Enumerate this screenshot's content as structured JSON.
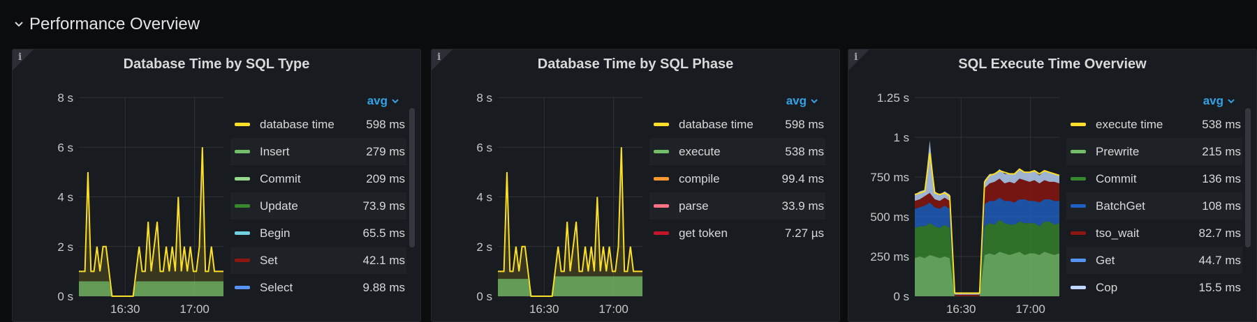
{
  "row": {
    "title": "Performance Overview"
  },
  "icons": {
    "collapse": "chevron-down-icon",
    "info": "info-icon"
  },
  "panels": [
    {
      "title": "Database Time by SQL Type",
      "info_label": "i",
      "legend_mode": "avg",
      "legend": [
        {
          "name": "database time",
          "value": "598 ms",
          "color": "#fade2a"
        },
        {
          "name": "Insert",
          "value": "279 ms",
          "color": "#73bf69"
        },
        {
          "name": "Commit",
          "value": "209 ms",
          "color": "#96d98d"
        },
        {
          "name": "Update",
          "value": "73.9 ms",
          "color": "#37872d"
        },
        {
          "name": "Begin",
          "value": "65.5 ms",
          "color": "#73d0e0"
        },
        {
          "name": "Set",
          "value": "42.1 ms",
          "color": "#8f1510"
        },
        {
          "name": "Select",
          "value": "9.88 ms",
          "color": "#5794f2"
        }
      ]
    },
    {
      "title": "Database Time by SQL Phase",
      "info_label": "i",
      "legend_mode": "avg",
      "legend": [
        {
          "name": "database time",
          "value": "598 ms",
          "color": "#fade2a"
        },
        {
          "name": "execute",
          "value": "538 ms",
          "color": "#73bf69"
        },
        {
          "name": "compile",
          "value": "99.4 ms",
          "color": "#ff9830"
        },
        {
          "name": "parse",
          "value": "33.9 ms",
          "color": "#ff7383"
        },
        {
          "name": "get token",
          "value": "7.27 µs",
          "color": "#c4162a"
        }
      ]
    },
    {
      "title": "SQL Execute Time Overview",
      "info_label": "i",
      "legend_mode": "avg",
      "legend": [
        {
          "name": "execute time",
          "value": "538 ms",
          "color": "#fade2a"
        },
        {
          "name": "Prewrite",
          "value": "215 ms",
          "color": "#73bf69"
        },
        {
          "name": "Commit",
          "value": "136 ms",
          "color": "#37872d"
        },
        {
          "name": "BatchGet",
          "value": "108 ms",
          "color": "#1f60c4"
        },
        {
          "name": "tso_wait",
          "value": "82.7 ms",
          "color": "#8f1510"
        },
        {
          "name": "Get",
          "value": "44.7 ms",
          "color": "#5794f2"
        },
        {
          "name": "Cop",
          "value": "15.5 ms",
          "color": "#c0d8ff"
        }
      ]
    }
  ],
  "chart_data": [
    {
      "type": "area",
      "title": "Database Time by SQL Type",
      "x_ticks": [
        "16:30",
        "17:00"
      ],
      "y_ticks": [
        "0 s",
        "2 s",
        "4 s",
        "6 s",
        "8 s"
      ],
      "ylim": [
        0,
        8
      ],
      "grid": true,
      "legend_position": "right",
      "series": [
        {
          "name": "database time",
          "values": [
            1.0,
            1.0,
            1.0,
            5.0,
            1.0,
            1.0,
            2.0,
            1.0,
            2.0,
            2.0,
            1.0,
            0,
            0,
            0,
            0,
            0,
            0,
            0,
            0,
            1.0,
            2.0,
            1.0,
            1.0,
            3.0,
            1.0,
            2.0,
            3.0,
            1.0,
            1.0,
            2.0,
            1.0,
            2.0,
            1.0,
            4.0,
            1.0,
            2.0,
            1.0,
            2.0,
            1.0,
            1.0,
            2.0,
            6.0,
            1.0,
            1.0,
            2.0,
            1.0,
            1.0,
            1.0,
            1.0
          ]
        },
        {
          "name": "Insert",
          "values": [
            0.6,
            0.6,
            0.6,
            0.6,
            0.6,
            0.6,
            0.6,
            0.6,
            0.6,
            0.6,
            0.6,
            0,
            0,
            0,
            0,
            0,
            0,
            0,
            0,
            0.6,
            0.6,
            0.6,
            0.6,
            0.6,
            0.6,
            0.6,
            0.6,
            0.6,
            0.6,
            0.6,
            0.6,
            0.6,
            0.6,
            0.6,
            0.6,
            0.6,
            0.6,
            0.6,
            0.6,
            0.6,
            0.6,
            0.6,
            0.6,
            0.6,
            0.6,
            0.6,
            0.6,
            0.6,
            0.6
          ]
        }
      ]
    },
    {
      "type": "area",
      "title": "Database Time by SQL Phase",
      "x_ticks": [
        "16:30",
        "17:00"
      ],
      "y_ticks": [
        "0 s",
        "2 s",
        "4 s",
        "6 s",
        "8 s"
      ],
      "ylim": [
        0,
        8
      ],
      "grid": true,
      "legend_position": "right",
      "series": [
        {
          "name": "database time",
          "values": [
            1.0,
            1.0,
            1.0,
            5.0,
            1.0,
            1.0,
            2.0,
            1.0,
            2.0,
            2.0,
            1.0,
            0,
            0,
            0,
            0,
            0,
            0,
            0,
            0,
            1.0,
            2.0,
            1.0,
            1.0,
            3.0,
            1.0,
            2.0,
            3.0,
            1.0,
            1.0,
            2.0,
            1.0,
            2.0,
            1.0,
            4.0,
            1.0,
            2.0,
            1.0,
            2.0,
            1.0,
            1.0,
            2.0,
            6.0,
            1.0,
            1.0,
            2.0,
            1.0,
            1.0,
            1.0,
            1.0
          ]
        },
        {
          "name": "execute",
          "values": [
            0.7,
            0.7,
            0.7,
            0.7,
            0.7,
            0.7,
            0.7,
            0.7,
            0.7,
            0.7,
            0.7,
            0,
            0,
            0,
            0,
            0,
            0,
            0,
            0,
            0.8,
            0.8,
            0.8,
            0.8,
            0.8,
            0.8,
            0.8,
            0.8,
            0.8,
            0.8,
            0.8,
            0.8,
            0.8,
            0.8,
            0.8,
            0.8,
            0.8,
            0.8,
            0.8,
            0.8,
            0.8,
            0.8,
            0.8,
            0.8,
            0.8,
            0.8,
            0.8,
            0.8,
            0.8,
            0.8
          ]
        }
      ]
    },
    {
      "type": "area",
      "title": "SQL Execute Time Overview",
      "x_ticks": [
        "16:30",
        "17:00"
      ],
      "y_ticks": [
        "0 s",
        "250 ms",
        "500 ms",
        "750 ms",
        "1 s",
        "1.25 s"
      ],
      "ylim": [
        0,
        1.25
      ],
      "grid": true,
      "legend_position": "right",
      "series": [
        {
          "name": "Prewrite",
          "values": [
            0.24,
            0.25,
            0.24,
            0.26,
            0.25,
            0.24,
            0.25,
            0.24,
            0,
            0,
            0,
            0,
            0,
            0,
            0.26,
            0.27,
            0.26,
            0.28,
            0.27,
            0.26,
            0.27,
            0.28,
            0.26,
            0.27,
            0.27,
            0.26,
            0.28,
            0.27,
            0.26,
            0.27
          ]
        },
        {
          "name": "Commit",
          "values": [
            0.19,
            0.19,
            0.2,
            0.2,
            0.19,
            0.19,
            0.2,
            0.19,
            0,
            0,
            0,
            0,
            0,
            0,
            0.18,
            0.19,
            0.19,
            0.2,
            0.19,
            0.19,
            0.18,
            0.19,
            0.2,
            0.19,
            0.19,
            0.18,
            0.19,
            0.2,
            0.19,
            0.19
          ]
        },
        {
          "name": "BatchGet",
          "values": [
            0.12,
            0.12,
            0.13,
            0.13,
            0.12,
            0.12,
            0.12,
            0.12,
            0,
            0,
            0,
            0,
            0,
            0,
            0.14,
            0.14,
            0.15,
            0.14,
            0.14,
            0.15,
            0.14,
            0.14,
            0.15,
            0.14,
            0.14,
            0.15,
            0.14,
            0.14,
            0.15,
            0.14
          ]
        },
        {
          "name": "tso_wait",
          "values": [
            0.05,
            0.05,
            0.06,
            0.06,
            0.05,
            0.05,
            0.05,
            0.05,
            0.01,
            0.01,
            0.01,
            0.01,
            0.01,
            0.01,
            0.1,
            0.11,
            0.12,
            0.12,
            0.11,
            0.12,
            0.12,
            0.13,
            0.12,
            0.12,
            0.13,
            0.12,
            0.12,
            0.11,
            0.12,
            0.11
          ]
        },
        {
          "name": "Cop",
          "values": [
            0.04,
            0.05,
            0.04,
            0.33,
            0.05,
            0.04,
            0.04,
            0.04,
            0.01,
            0.01,
            0.01,
            0.01,
            0.01,
            0.01,
            0.05,
            0.06,
            0.05,
            0.06,
            0.06,
            0.05,
            0.06,
            0.06,
            0.05,
            0.06,
            0.06,
            0.05,
            0.06,
            0.06,
            0.05,
            0.05
          ]
        },
        {
          "name": "execute time",
          "values": [
            0.64,
            0.65,
            0.66,
            0.9,
            0.65,
            0.64,
            0.65,
            0.63,
            0.02,
            0.02,
            0.02,
            0.02,
            0.02,
            0.02,
            0.72,
            0.76,
            0.77,
            0.79,
            0.78,
            0.77,
            0.77,
            0.8,
            0.78,
            0.78,
            0.79,
            0.77,
            0.79,
            0.78,
            0.77,
            0.76
          ]
        }
      ]
    }
  ]
}
